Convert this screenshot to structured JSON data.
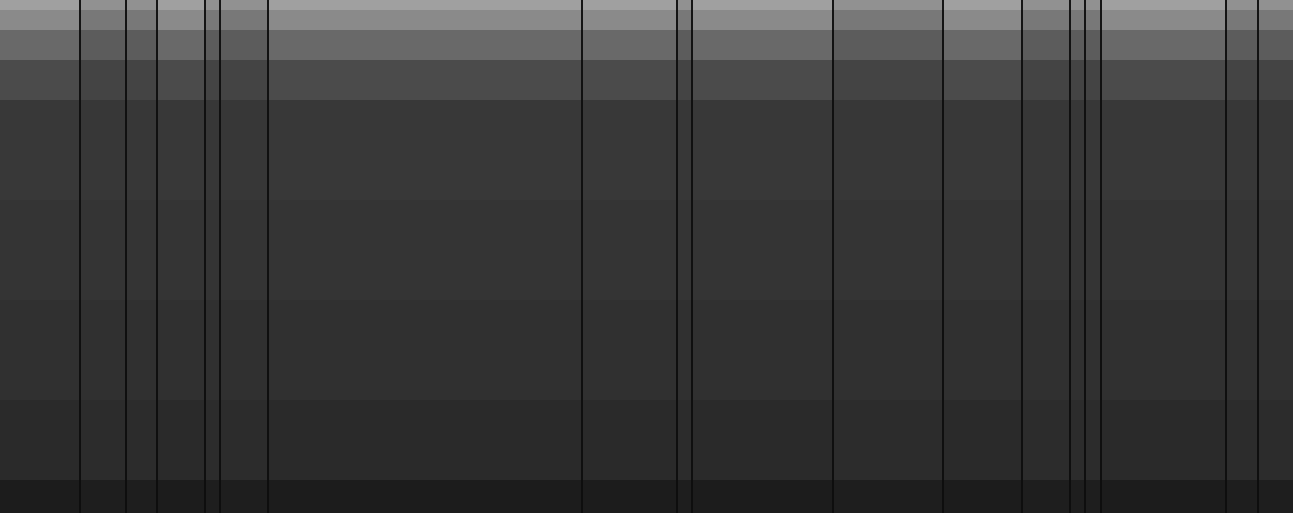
{
  "chart_data": {
    "type": "heatmap",
    "tick_labels": false,
    "xlim": [
      0,
      1293
    ],
    "ylim": [
      0,
      513
    ],
    "x_edges": [
      0,
      79,
      81,
      125,
      127,
      156,
      158,
      204,
      206,
      219,
      221,
      267,
      269,
      581,
      583,
      676,
      678,
      691,
      693,
      832,
      834,
      942,
      944,
      1021,
      1023,
      1069,
      1071,
      1084,
      1086,
      1100,
      1102,
      1225,
      1227,
      1257,
      1259,
      1293
    ],
    "y_edges": [
      0,
      33,
      113,
      213,
      313,
      413,
      453,
      483,
      503,
      513
    ],
    "color_range": [
      0,
      255
    ],
    "cells": [
      [
        28,
        14,
        30,
        14,
        30,
        14,
        28,
        14,
        30,
        14,
        30,
        14,
        28,
        14,
        28,
        14,
        30,
        14,
        28,
        14,
        30,
        14,
        28,
        14,
        30,
        14,
        30,
        14,
        30,
        14,
        28,
        14,
        30,
        14,
        30
      ],
      [
        42,
        15,
        44,
        15,
        44,
        15,
        42,
        15,
        44,
        15,
        44,
        15,
        42,
        15,
        42,
        15,
        44,
        15,
        42,
        15,
        44,
        15,
        42,
        15,
        44,
        15,
        44,
        15,
        44,
        15,
        42,
        15,
        44,
        15,
        44
      ],
      [
        48,
        15,
        48,
        15,
        48,
        15,
        48,
        15,
        48,
        15,
        48,
        15,
        48,
        15,
        48,
        15,
        48,
        15,
        48,
        15,
        48,
        15,
        48,
        15,
        48,
        15,
        48,
        15,
        48,
        15,
        48,
        15,
        48,
        15,
        48
      ],
      [
        52,
        16,
        52,
        16,
        52,
        16,
        52,
        16,
        52,
        16,
        52,
        16,
        52,
        16,
        52,
        16,
        52,
        16,
        52,
        16,
        52,
        16,
        52,
        16,
        52,
        16,
        52,
        16,
        52,
        16,
        52,
        16,
        52,
        16,
        52
      ],
      [
        56,
        16,
        55,
        16,
        55,
        16,
        56,
        16,
        55,
        16,
        55,
        16,
        56,
        16,
        56,
        16,
        55,
        16,
        56,
        16,
        55,
        16,
        56,
        16,
        55,
        16,
        55,
        16,
        55,
        16,
        56,
        16,
        55,
        16,
        55
      ],
      [
        75,
        17,
        68,
        17,
        68,
        17,
        75,
        17,
        68,
        17,
        68,
        17,
        75,
        17,
        75,
        17,
        68,
        17,
        75,
        17,
        68,
        17,
        75,
        17,
        68,
        17,
        68,
        17,
        68,
        17,
        75,
        17,
        68,
        17,
        68
      ],
      [
        105,
        18,
        92,
        18,
        92,
        18,
        105,
        18,
        92,
        18,
        92,
        18,
        105,
        18,
        105,
        18,
        92,
        18,
        105,
        18,
        92,
        18,
        105,
        18,
        92,
        18,
        92,
        18,
        92,
        18,
        105,
        18,
        92,
        18,
        92
      ],
      [
        138,
        20,
        120,
        20,
        120,
        20,
        138,
        20,
        120,
        20,
        120,
        20,
        138,
        20,
        138,
        20,
        120,
        20,
        138,
        20,
        120,
        20,
        138,
        20,
        120,
        20,
        120,
        20,
        120,
        20,
        138,
        20,
        120,
        20,
        120
      ],
      [
        160,
        22,
        145,
        22,
        145,
        22,
        160,
        22,
        145,
        22,
        145,
        22,
        160,
        22,
        160,
        22,
        145,
        22,
        160,
        22,
        145,
        22,
        160,
        22,
        145,
        22,
        145,
        22,
        145,
        22,
        160,
        22,
        145,
        22,
        145
      ]
    ]
  }
}
